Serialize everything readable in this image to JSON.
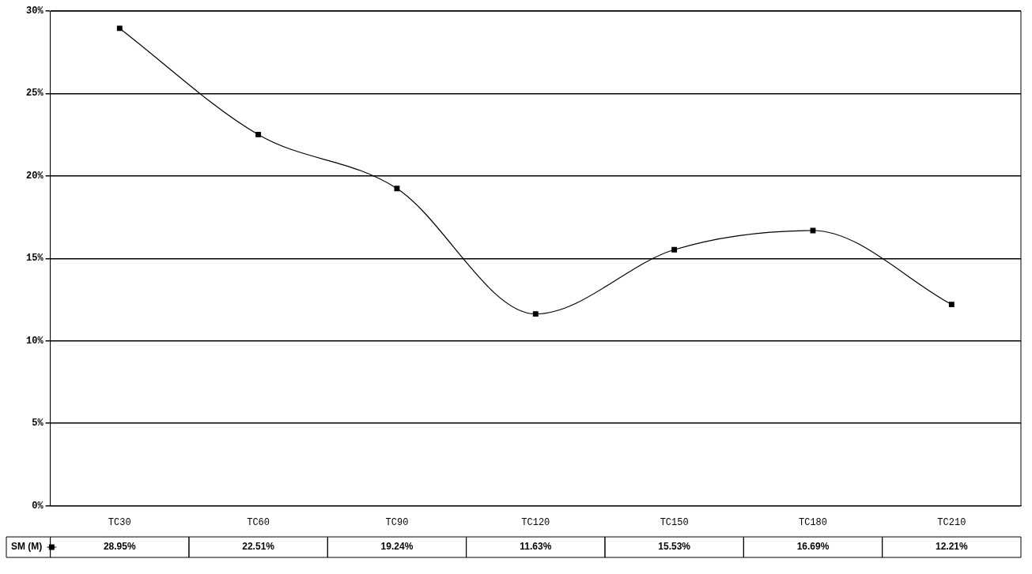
{
  "chart_data": {
    "type": "line",
    "categories": [
      "TC30",
      "TC60",
      "TC90",
      "TC120",
      "TC150",
      "TC180",
      "TC210"
    ],
    "series": [
      {
        "name": "SM (M)",
        "color": "#000000",
        "values": [
          28.95,
          22.51,
          19.24,
          11.63,
          15.53,
          16.69,
          12.21
        ],
        "value_labels": [
          "28.95%",
          "22.51%",
          "19.24%",
          "11.63%",
          "15.53%",
          "16.69%",
          "12.21%"
        ]
      }
    ],
    "ylim": [
      0,
      30
    ],
    "yticks": [
      {
        "value": 0,
        "label": "0%"
      },
      {
        "value": 5,
        "label": "5%"
      },
      {
        "value": 10,
        "label": "10%"
      },
      {
        "value": 15,
        "label": "15%"
      },
      {
        "value": 20,
        "label": "20%"
      },
      {
        "value": 25,
        "label": "25%"
      },
      {
        "value": 30,
        "label": "30%"
      }
    ],
    "grid": "y",
    "legend": "bottom",
    "marker": "square",
    "line_style": "solid"
  }
}
